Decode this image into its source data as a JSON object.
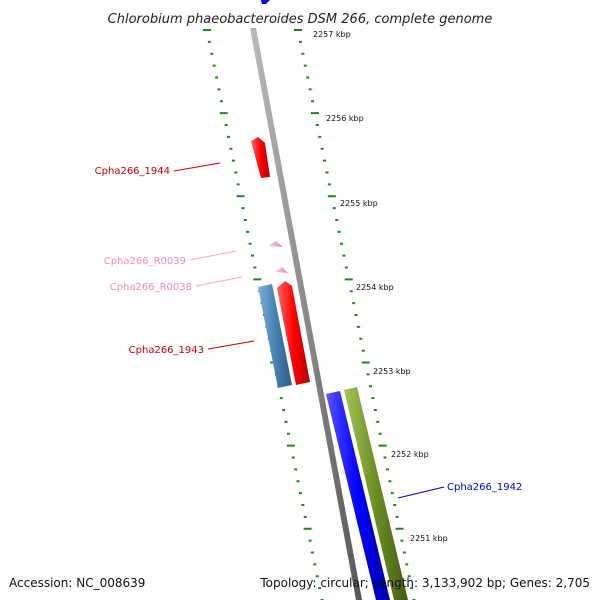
{
  "title": "Chlorobium phaeobacteroides DSM 266, complete genome",
  "kbp_ticks": [
    {
      "label": "2257 kbp"
    },
    {
      "label": "2256 kbp"
    },
    {
      "label": "2255 kbp"
    },
    {
      "label": "2254 kbp"
    },
    {
      "label": "2253 kbp"
    },
    {
      "label": "2252 kbp"
    },
    {
      "label": "2251 kbp"
    }
  ],
  "genes": [
    {
      "name": "Cpha266_1944",
      "strand": "reverse-inner",
      "color": "#ff0000"
    },
    {
      "name": "Cpha266_R0039",
      "strand": "inner",
      "color": "#f4a6c8"
    },
    {
      "name": "Cpha266_R0038",
      "strand": "inner",
      "color": "#f4a6c8"
    },
    {
      "name": "Cpha266_1943",
      "strand": "inner",
      "color": "#ff0000"
    },
    {
      "name": "Cpha266_1942",
      "strand": "outer",
      "color": "#0000ff"
    }
  ],
  "unlabeled_features": [
    {
      "color": "#4682b4"
    },
    {
      "color": "#6b8e23"
    }
  ],
  "colors": {
    "backbone": "#8a8a8a",
    "tick": "#1a8a1a",
    "label_default": "#cc0000"
  },
  "footer": {
    "accession": "Accession: NC_008639",
    "summary": "Topology: circular; Length: 3,133,902 bp; Genes: 2,705"
  }
}
